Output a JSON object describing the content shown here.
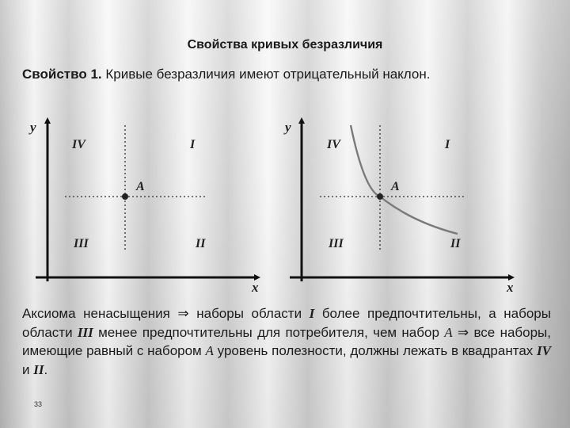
{
  "slide": {
    "title": "Свойства кривых безразличия",
    "property_label": "Свойство 1.",
    "property_text": " Кривые безразличия имеют отрицательный наклон.",
    "page_number": "33"
  },
  "diagrams": [
    {
      "y_label": "y",
      "x_label": "x",
      "quadrants": {
        "q1": "I",
        "q2": "II",
        "q3": "III",
        "q4": "IV"
      },
      "point_label": "A",
      "has_curve": false
    },
    {
      "y_label": "y",
      "x_label": "x",
      "quadrants": {
        "q1": "I",
        "q2": "II",
        "q3": "III",
        "q4": "IV"
      },
      "point_label": "A",
      "has_curve": true
    }
  ],
  "paragraph": {
    "p1": "Аксиома ненасыщения ⇒ наборы области ",
    "r1": "I",
    "p2": " более предпочтительны, а наборы области ",
    "r2": "III",
    "p3": " менее предпочтительны для потребителя, чем набор ",
    "a1": "A",
    "p4": " ⇒ все наборы, имеющие равный с набором ",
    "a2": "A",
    "p5": " уровень полезности, должны лежать в квадрантах ",
    "r3": "IV",
    "p6": " и ",
    "r4": "II",
    "p7": "."
  },
  "colors": {
    "axis": "#111111",
    "curve": "#7a7a7a",
    "point": "#222222"
  }
}
